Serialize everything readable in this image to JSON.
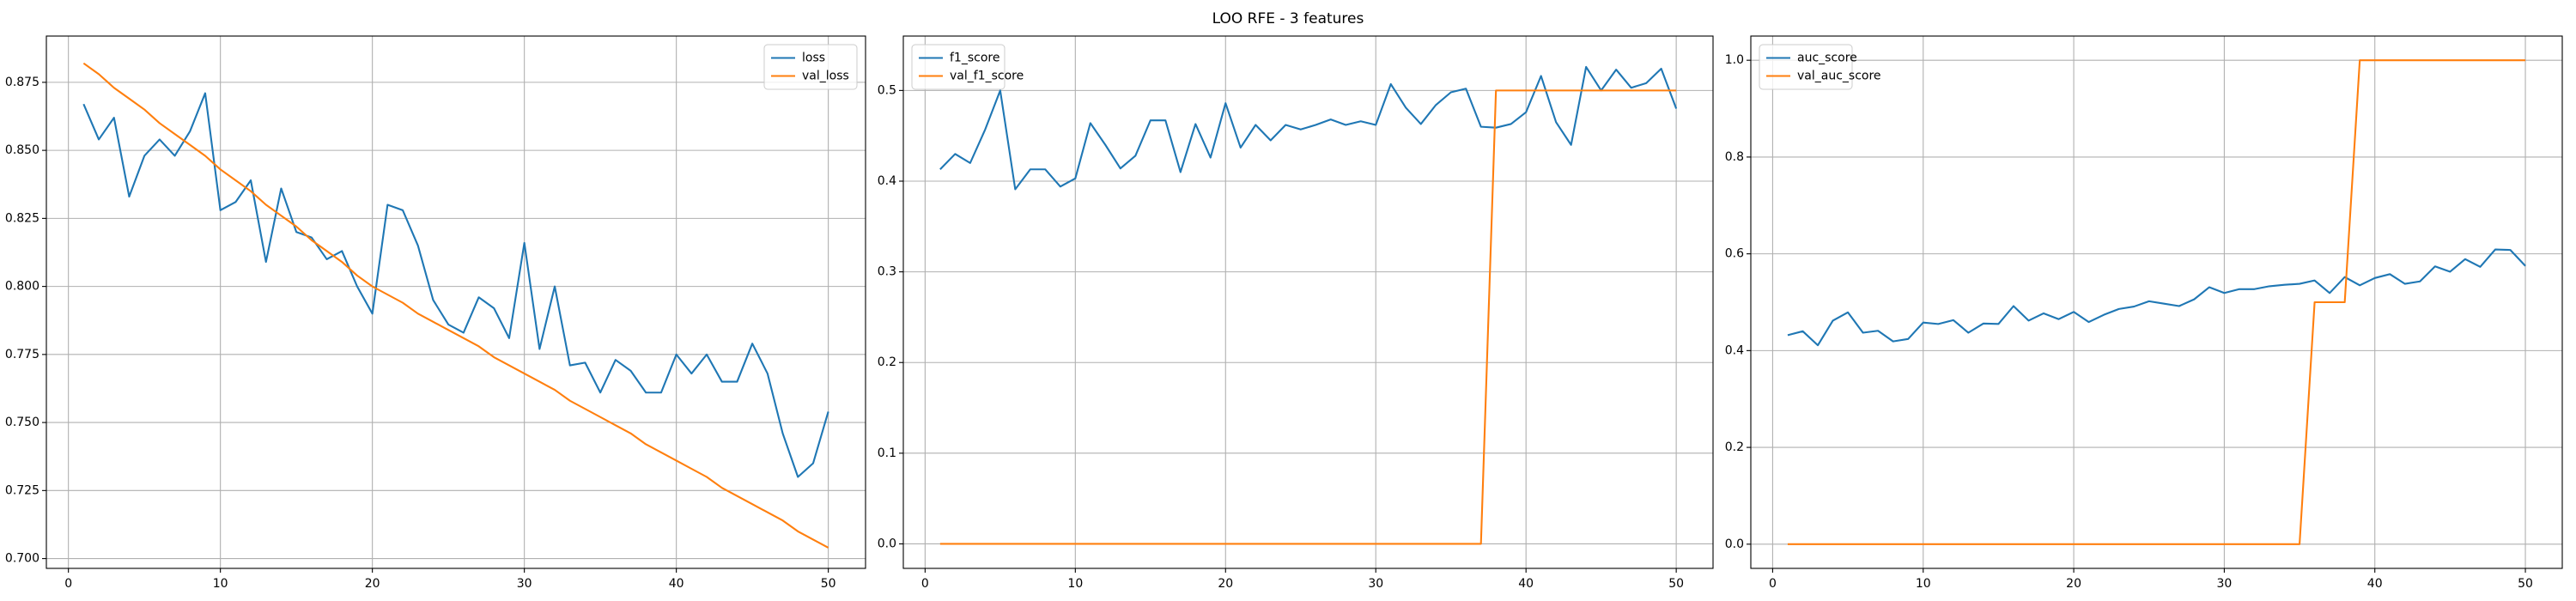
{
  "title": "LOO RFE - 3 features",
  "chart_data": [
    {
      "type": "line",
      "x": [
        1,
        2,
        3,
        4,
        5,
        6,
        7,
        8,
        9,
        10,
        11,
        12,
        13,
        14,
        15,
        16,
        17,
        18,
        19,
        20,
        21,
        22,
        23,
        24,
        25,
        26,
        27,
        28,
        29,
        30,
        31,
        32,
        33,
        34,
        35,
        36,
        37,
        38,
        39,
        40,
        41,
        42,
        43,
        44,
        45,
        46,
        47,
        48,
        49,
        50
      ],
      "series": [
        {
          "name": "loss",
          "color": "#1f77b4",
          "values": [
            0.867,
            0.854,
            0.862,
            0.833,
            0.848,
            0.854,
            0.848,
            0.857,
            0.871,
            0.828,
            0.831,
            0.839,
            0.809,
            0.836,
            0.82,
            0.818,
            0.81,
            0.813,
            0.8,
            0.79,
            0.83,
            0.828,
            0.815,
            0.795,
            0.786,
            0.783,
            0.796,
            0.792,
            0.781,
            0.816,
            0.777,
            0.8,
            0.771,
            0.772,
            0.761,
            0.773,
            0.769,
            0.761,
            0.761,
            0.775,
            0.768,
            0.775,
            0.765,
            0.765,
            0.779,
            0.768,
            0.746,
            0.73,
            0.735,
            0.754
          ]
        },
        {
          "name": "val_loss",
          "color": "#ff7f0e",
          "values": [
            0.882,
            0.878,
            0.873,
            0.869,
            0.865,
            0.86,
            0.856,
            0.852,
            0.848,
            0.843,
            0.839,
            0.835,
            0.83,
            0.826,
            0.822,
            0.817,
            0.813,
            0.809,
            0.804,
            0.8,
            0.797,
            0.794,
            0.79,
            0.787,
            0.784,
            0.781,
            0.778,
            0.774,
            0.771,
            0.768,
            0.765,
            0.762,
            0.758,
            0.755,
            0.752,
            0.749,
            0.746,
            0.742,
            0.739,
            0.736,
            0.733,
            0.73,
            0.726,
            0.723,
            0.72,
            0.717,
            0.714,
            0.71,
            0.707,
            0.704
          ]
        }
      ],
      "xlim": [
        -1.45,
        52.45
      ],
      "ylim": [
        0.6964,
        0.892
      ],
      "xticks": [
        0,
        10,
        20,
        30,
        40,
        50
      ],
      "yticks": [
        {
          "value": 0.7,
          "label": "0.700"
        },
        0.725,
        {
          "value": 0.75,
          "label": "0.750"
        },
        0.775,
        {
          "value": 0.8,
          "label": "0.800"
        },
        0.825,
        {
          "value": 0.85,
          "label": "0.850"
        },
        0.875
      ],
      "grid": true,
      "legend": "upper right"
    },
    {
      "type": "line",
      "x": [
        1,
        2,
        3,
        4,
        5,
        6,
        7,
        8,
        9,
        10,
        11,
        12,
        13,
        14,
        15,
        16,
        17,
        18,
        19,
        20,
        21,
        22,
        23,
        24,
        25,
        26,
        27,
        28,
        29,
        30,
        31,
        32,
        33,
        34,
        35,
        36,
        37,
        38,
        39,
        40,
        41,
        42,
        43,
        44,
        45,
        46,
        47,
        48,
        49,
        50
      ],
      "series": [
        {
          "name": "f1_score",
          "color": "#1f77b4",
          "values": [
            0.413,
            0.43,
            0.42,
            0.457,
            0.5,
            0.391,
            0.413,
            0.413,
            0.394,
            0.403,
            0.464,
            0.44,
            0.414,
            0.428,
            0.467,
            0.467,
            0.41,
            0.463,
            0.426,
            0.486,
            0.437,
            0.462,
            0.445,
            0.462,
            0.457,
            0.462,
            0.468,
            0.462,
            0.466,
            0.462,
            0.507,
            0.481,
            0.463,
            0.484,
            0.498,
            0.502,
            0.46,
            0.459,
            0.463,
            0.476,
            0.516,
            0.465,
            0.44,
            0.526,
            0.5,
            0.523,
            0.503,
            0.508,
            0.524,
            0.48
          ]
        },
        {
          "name": "val_f1_score",
          "color": "#ff7f0e",
          "values": [
            0,
            0,
            0,
            0,
            0,
            0,
            0,
            0,
            0,
            0,
            0,
            0,
            0,
            0,
            0,
            0,
            0,
            0,
            0,
            0,
            0,
            0,
            0,
            0,
            0,
            0,
            0,
            0,
            0,
            0,
            0,
            0,
            0,
            0,
            0,
            0,
            0,
            0.5,
            0.5,
            0.5,
            0.5,
            0.5,
            0.5,
            0.5,
            0.5,
            0.5,
            0.5,
            0.5,
            0.5,
            0.5
          ]
        }
      ],
      "xlim": [
        -1.45,
        52.45
      ],
      "ylim": [
        -0.027,
        0.56
      ],
      "xticks": [
        0,
        10,
        20,
        30,
        40,
        50
      ],
      "yticks": [
        {
          "value": 0,
          "label": "0.0"
        },
        0.1,
        0.2,
        0.3,
        0.4,
        0.5
      ],
      "grid": true,
      "legend": "upper left"
    },
    {
      "type": "line",
      "x": [
        1,
        2,
        3,
        4,
        5,
        6,
        7,
        8,
        9,
        10,
        11,
        12,
        13,
        14,
        15,
        16,
        17,
        18,
        19,
        20,
        21,
        22,
        23,
        24,
        25,
        26,
        27,
        28,
        29,
        30,
        31,
        32,
        33,
        34,
        35,
        36,
        37,
        38,
        39,
        40,
        41,
        42,
        43,
        44,
        45,
        46,
        47,
        48,
        49,
        50
      ],
      "series": [
        {
          "name": "auc_score",
          "color": "#1f77b4",
          "values": [
            0.432,
            0.44,
            0.411,
            0.462,
            0.479,
            0.437,
            0.441,
            0.419,
            0.424,
            0.458,
            0.455,
            0.463,
            0.437,
            0.456,
            0.455,
            0.492,
            0.462,
            0.477,
            0.465,
            0.48,
            0.459,
            0.474,
            0.486,
            0.491,
            0.502,
            0.497,
            0.492,
            0.506,
            0.531,
            0.519,
            0.527,
            0.527,
            0.533,
            0.536,
            0.538,
            0.545,
            0.519,
            0.552,
            0.535,
            0.55,
            0.558,
            0.538,
            0.543,
            0.574,
            0.563,
            0.589,
            0.573,
            0.609,
            0.608,
            0.575
          ]
        },
        {
          "name": "val_auc_score",
          "color": "#ff7f0e",
          "values": [
            0,
            0,
            0,
            0,
            0,
            0,
            0,
            0,
            0,
            0,
            0,
            0,
            0,
            0,
            0,
            0,
            0,
            0,
            0,
            0,
            0,
            0,
            0,
            0,
            0,
            0,
            0,
            0,
            0,
            0,
            0,
            0,
            0,
            0,
            0,
            0.5,
            0.5,
            0.5,
            1,
            1,
            1,
            1,
            1,
            1,
            1,
            1,
            1,
            1,
            1,
            1
          ]
        }
      ],
      "xlim": [
        -1.45,
        52.45
      ],
      "ylim": [
        -0.05,
        1.05
      ],
      "xticks": [
        0,
        10,
        20,
        30,
        40,
        50
      ],
      "yticks": [
        {
          "value": 0,
          "label": "0.0"
        },
        0.2,
        0.4,
        0.6,
        0.8,
        {
          "value": 1,
          "label": "1.0"
        }
      ],
      "grid": true,
      "legend": "upper left"
    }
  ]
}
